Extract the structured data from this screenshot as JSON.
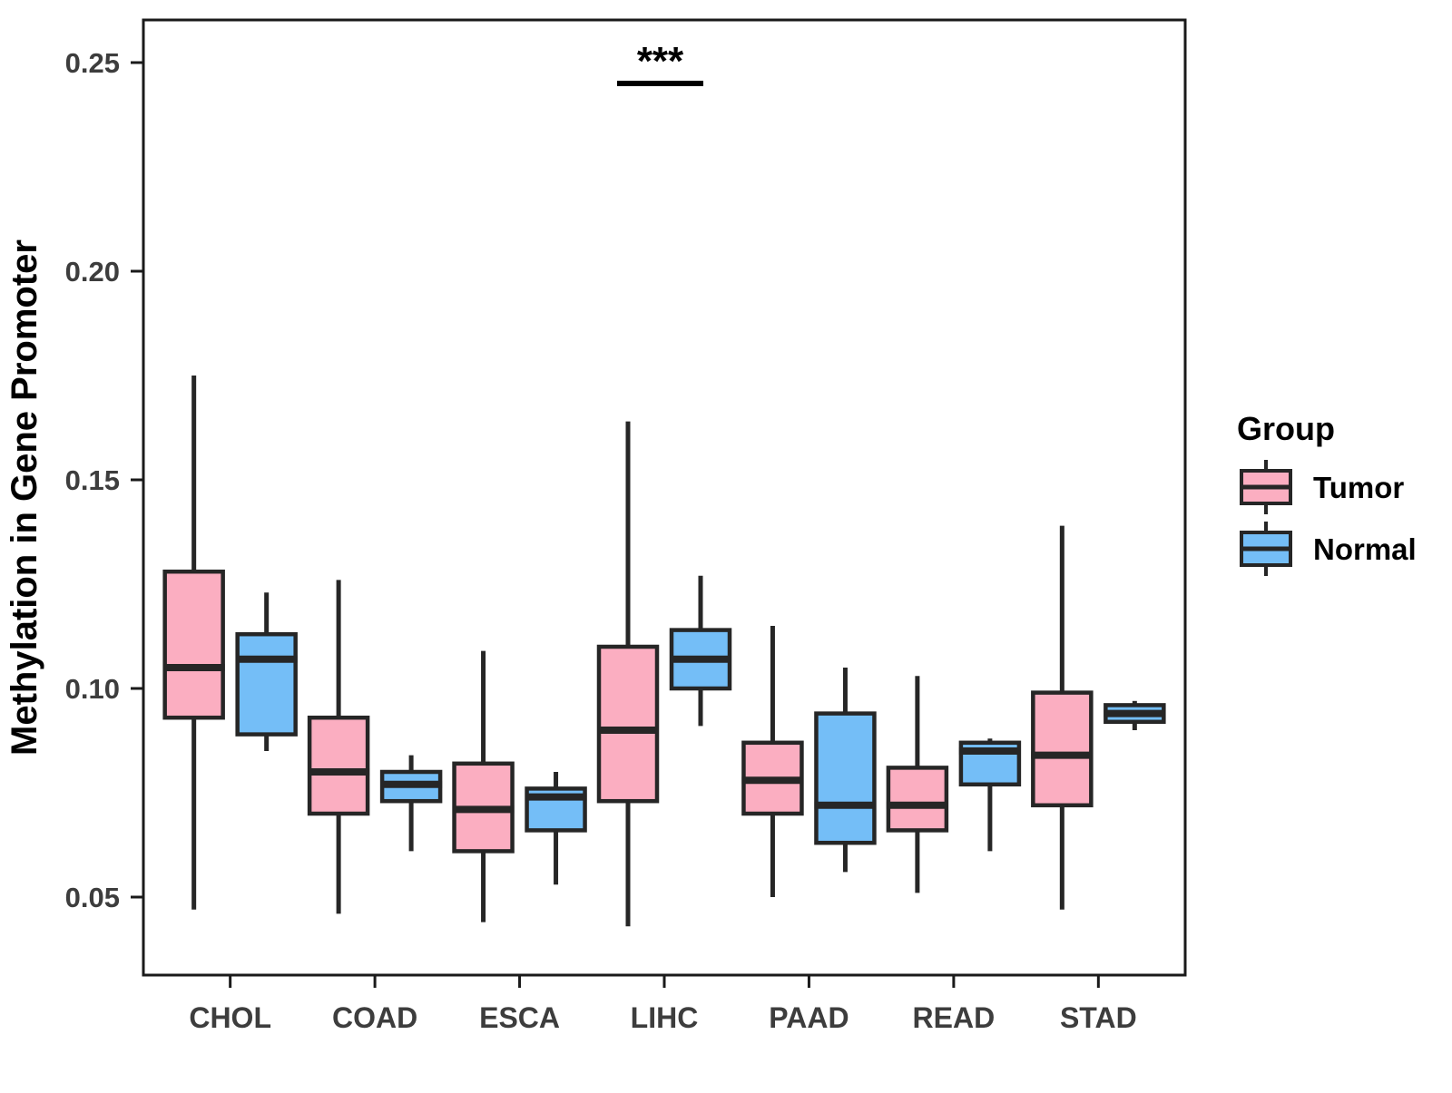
{
  "chart_data": {
    "type": "boxplot",
    "title": "",
    "xlabel": "",
    "ylabel": "Methylation in Gene Promoter",
    "categories": [
      "CHOL",
      "COAD",
      "ESCA",
      "LIHC",
      "PAAD",
      "READ",
      "STAD"
    ],
    "series": [
      {
        "name": "Tumor",
        "color": "#FBAEC1",
        "boxes": [
          {
            "low": 0.047,
            "q1": 0.093,
            "median": 0.105,
            "q3": 0.128,
            "high": 0.175
          },
          {
            "low": 0.046,
            "q1": 0.07,
            "median": 0.08,
            "q3": 0.093,
            "high": 0.126
          },
          {
            "low": 0.044,
            "q1": 0.061,
            "median": 0.071,
            "q3": 0.082,
            "high": 0.109
          },
          {
            "low": 0.043,
            "q1": 0.073,
            "median": 0.09,
            "q3": 0.11,
            "high": 0.164
          },
          {
            "low": 0.05,
            "q1": 0.07,
            "median": 0.078,
            "q3": 0.087,
            "high": 0.115
          },
          {
            "low": 0.051,
            "q1": 0.066,
            "median": 0.072,
            "q3": 0.081,
            "high": 0.103
          },
          {
            "low": 0.047,
            "q1": 0.072,
            "median": 0.084,
            "q3": 0.099,
            "high": 0.139
          }
        ]
      },
      {
        "name": "Normal",
        "color": "#74BEF7",
        "boxes": [
          {
            "low": 0.085,
            "q1": 0.089,
            "median": 0.107,
            "q3": 0.113,
            "high": 0.123
          },
          {
            "low": 0.061,
            "q1": 0.073,
            "median": 0.077,
            "q3": 0.08,
            "high": 0.084
          },
          {
            "low": 0.053,
            "q1": 0.066,
            "median": 0.074,
            "q3": 0.076,
            "high": 0.08
          },
          {
            "low": 0.091,
            "q1": 0.1,
            "median": 0.107,
            "q3": 0.114,
            "high": 0.127
          },
          {
            "low": 0.056,
            "q1": 0.063,
            "median": 0.072,
            "q3": 0.094,
            "high": 0.105
          },
          {
            "low": 0.061,
            "q1": 0.077,
            "median": 0.085,
            "q3": 0.087,
            "high": 0.088
          },
          {
            "low": 0.09,
            "q1": 0.092,
            "median": 0.094,
            "q3": 0.096,
            "high": 0.097
          }
        ]
      }
    ],
    "y_axis": {
      "ticks": [
        0.05,
        0.1,
        0.15,
        0.2,
        0.25
      ],
      "tick_labels": [
        "0.05",
        "0.10",
        "0.15",
        "0.20",
        "0.25"
      ],
      "range": [
        0.034,
        0.262
      ],
      "grid": false
    },
    "legend": {
      "title": "Group",
      "position": "right",
      "entries": [
        "Tumor",
        "Normal"
      ]
    },
    "annotations": [
      {
        "type": "significance-bracket",
        "label": "***",
        "category": "LIHC",
        "between": [
          "Tumor",
          "Normal"
        ]
      }
    ],
    "style": {
      "background": "#ffffff",
      "axis_color": "#1a1a1a",
      "box_border": "#262626",
      "tick_label_color": "#3d3d3d",
      "title_color": "#000000"
    }
  }
}
